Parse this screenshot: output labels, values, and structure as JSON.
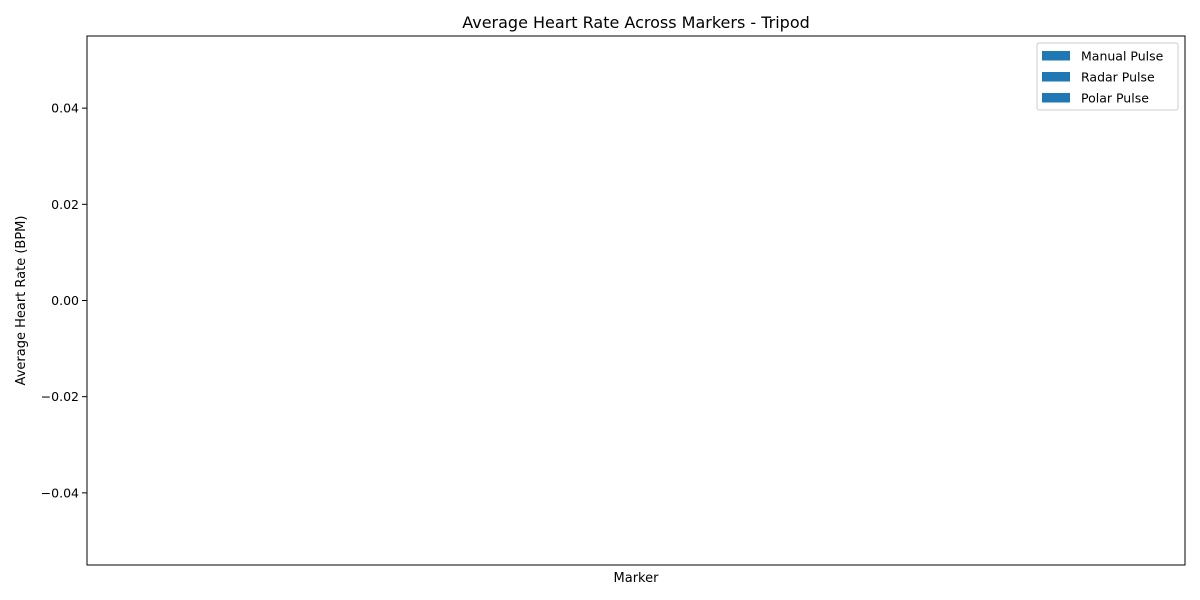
{
  "chart_data": {
    "type": "bar",
    "title": "Average Heart Rate Across Markers - Tripod",
    "xlabel": "Marker",
    "ylabel": "Average Heart Rate (BPM)",
    "categories": [],
    "series": [
      {
        "name": "Manual Pulse",
        "values": [],
        "color": "#1f77b4"
      },
      {
        "name": "Radar Pulse",
        "values": [],
        "color": "#1f77b4"
      },
      {
        "name": "Polar Pulse",
        "values": [],
        "color": "#1f77b4"
      }
    ],
    "ylim": [
      -0.055,
      0.055
    ],
    "yticks": [
      -0.04,
      -0.02,
      0.0,
      0.02,
      0.04
    ],
    "ytick_labels": [
      "−0.04",
      "−0.02",
      "0.00",
      "0.02",
      "0.04"
    ],
    "grid": false,
    "legend": "top-right"
  }
}
